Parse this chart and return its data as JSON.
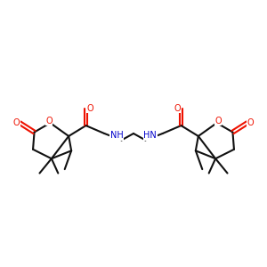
{
  "bg": "#ffffff",
  "bc": "#111111",
  "oc": "#ee1100",
  "nc": "#0000cc",
  "lw": 1.5,
  "lw_thin": 1.2,
  "fs": 7.0,
  "xlim": [
    0,
    10
  ],
  "ylim": [
    3.5,
    7.5
  ]
}
